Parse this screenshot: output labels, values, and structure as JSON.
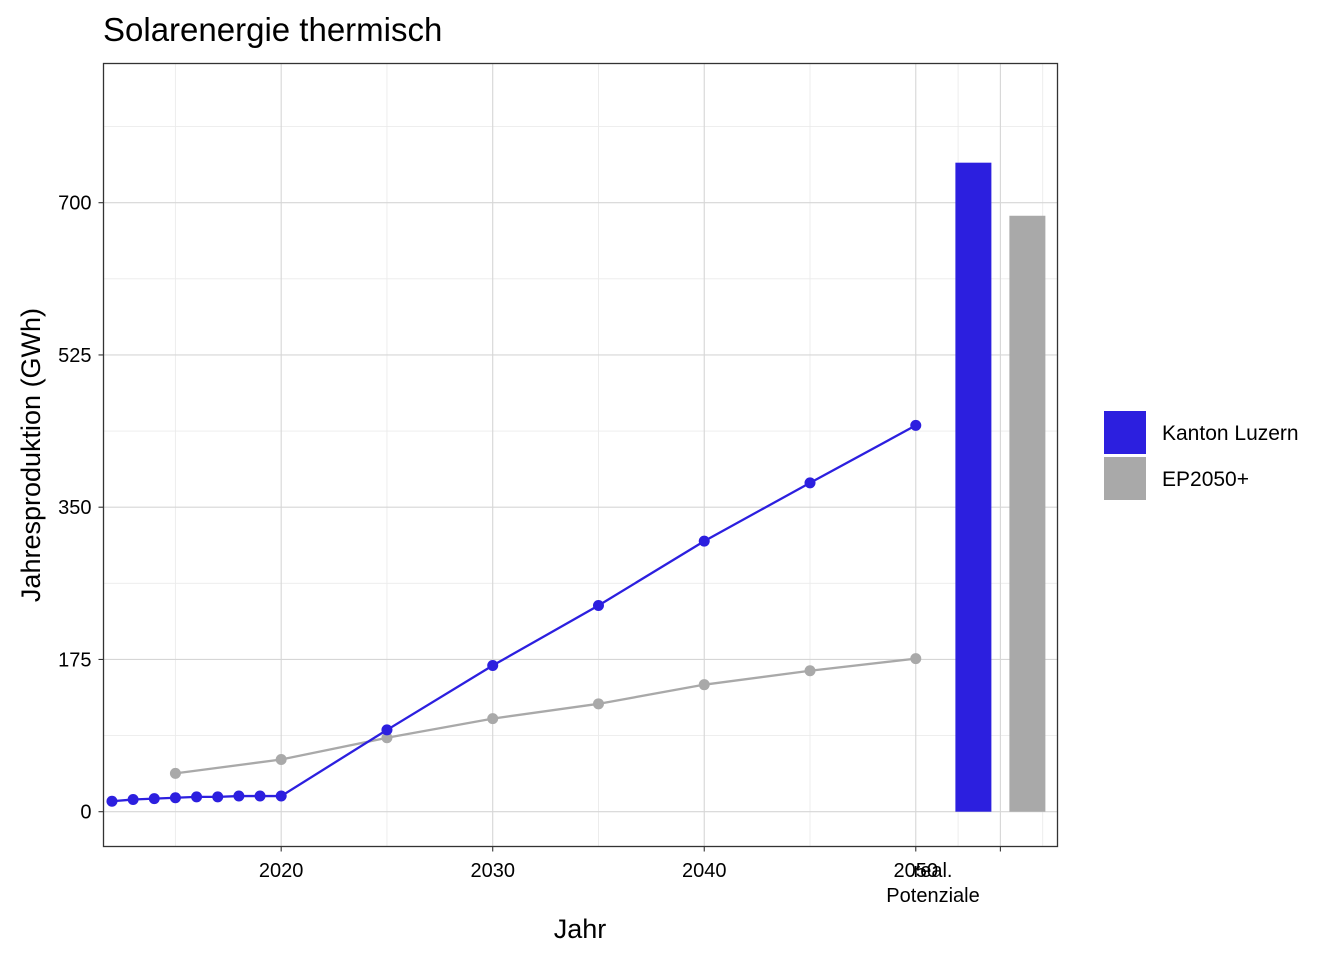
{
  "chart_data": {
    "type": "line",
    "title": "Solarenergie thermisch",
    "xlabel": "Jahr",
    "ylabel": "Jahresproduktion (GWh)",
    "xlim": [
      2011.6,
      2056.7
    ],
    "ylim": [
      -40,
      860
    ],
    "x_ticks": [
      2020,
      2030,
      2040,
      2050
    ],
    "y_ticks": [
      0,
      175,
      350,
      525,
      700
    ],
    "grid": true,
    "legend_position": "right",
    "series": [
      {
        "name": "Kanton Luzern",
        "color": "#2c1fdf",
        "x": [
          2012,
          2013,
          2014,
          2015,
          2016,
          2017,
          2018,
          2019,
          2020,
          2025,
          2030,
          2035,
          2040,
          2045,
          2050
        ],
        "y": [
          12,
          14,
          15,
          16,
          17,
          17,
          18,
          18,
          18,
          94,
          168,
          237,
          311,
          378,
          444
        ]
      },
      {
        "name": "EP2050+",
        "color": "#a9a9a9",
        "x": [
          2015,
          2020,
          2025,
          2030,
          2035,
          2040,
          2045,
          2050
        ],
        "y": [
          44,
          60,
          85,
          107,
          124,
          146,
          162,
          176
        ]
      }
    ],
    "potentials": {
      "label_line1": "real.",
      "label_line2": "Potenziale",
      "x": 2054,
      "bars": [
        {
          "series": "Kanton Luzern",
          "value": 746,
          "color": "#2c1fdf"
        },
        {
          "series": "EP2050+",
          "value": 685,
          "color": "#a9a9a9"
        }
      ]
    }
  }
}
